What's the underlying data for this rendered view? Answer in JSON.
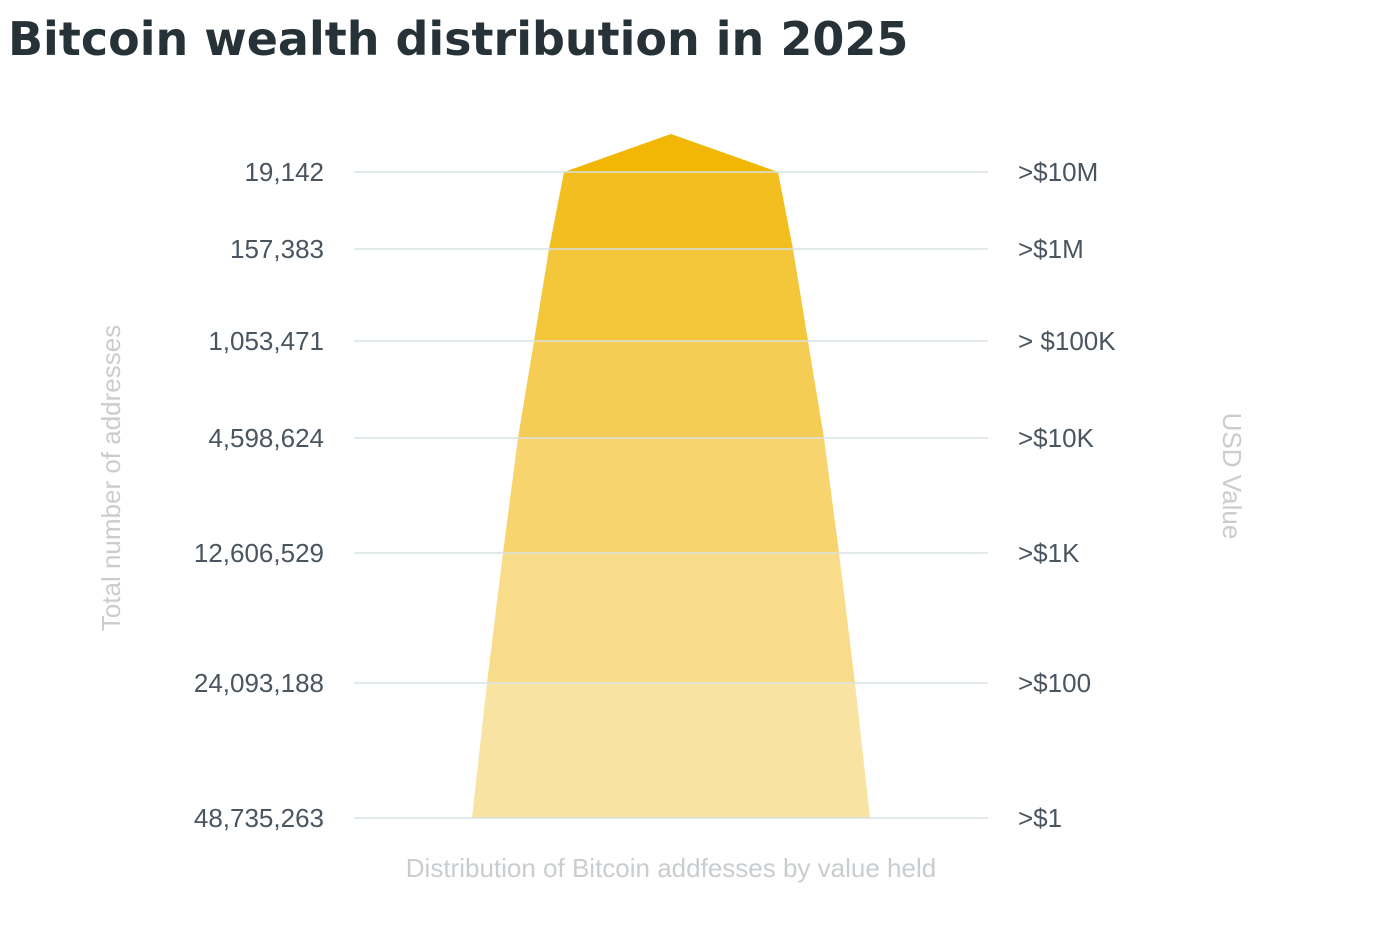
{
  "chart_data": {
    "type": "pyramid",
    "title": "Bitcoin wealth distribution in 2025",
    "xlabel": "Distribution of Bitcoin addfesses by value held",
    "ylabel_left": "Total number of addresses",
    "ylabel_right": "USD Value",
    "tiers": [
      {
        "addresses": "19,142",
        "usd": ">$10M"
      },
      {
        "addresses": "157,383",
        "usd": ">$1M"
      },
      {
        "addresses": "1,053,471",
        "usd": "> $100K"
      },
      {
        "addresses": "4,598,624",
        "usd": ">$10K"
      },
      {
        "addresses": "12,606,529",
        "usd": ">$1K"
      },
      {
        "addresses": "24,093,188",
        "usd": ">$100"
      },
      {
        "addresses": "48,735,263",
        "usd": ">$1"
      }
    ],
    "colors": {
      "top": "#f2b705",
      "bottom": "#f9e3a3",
      "grid": "#d8e2e2",
      "label": "#4a5560",
      "axis_title": "#c9cdd0"
    }
  }
}
